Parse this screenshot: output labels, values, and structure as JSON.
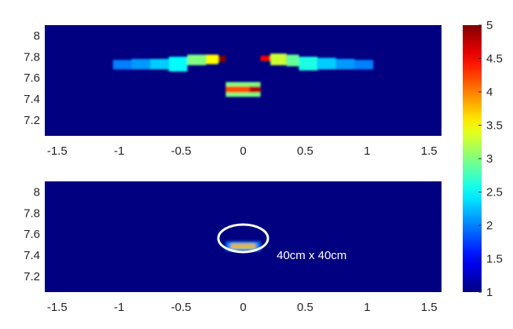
{
  "chart_data": [
    {
      "type": "heatmap",
      "title": "",
      "xlabel": "",
      "ylabel": "",
      "xlim": [
        -1.6,
        1.6
      ],
      "ylim": [
        7.05,
        8.1
      ],
      "x_ticks": [
        "-1.5",
        "-1",
        "-0.5",
        "0",
        "0.5",
        "1",
        "1.5"
      ],
      "x_tick_values": [
        -1.5,
        -1,
        -0.5,
        0,
        0.5,
        1,
        1.5
      ],
      "y_ticks": [
        "8",
        "7.8",
        "7.6",
        "7.4",
        "7.2"
      ],
      "y_tick_values": [
        8,
        7.8,
        7.6,
        7.4,
        7.2
      ],
      "background_value": 1,
      "cells": [
        {
          "x0": -1.05,
          "x1": -0.9,
          "y0": 7.68,
          "y1": 7.77,
          "v": 2.0
        },
        {
          "x0": -0.9,
          "x1": -0.75,
          "y0": 7.68,
          "y1": 7.78,
          "v": 2.1
        },
        {
          "x0": -0.75,
          "x1": -0.6,
          "y0": 7.68,
          "y1": 7.78,
          "v": 2.3
        },
        {
          "x0": -0.6,
          "x1": -0.45,
          "y0": 7.66,
          "y1": 7.8,
          "v": 2.5
        },
        {
          "x0": -0.45,
          "x1": -0.3,
          "y0": 7.72,
          "y1": 7.82,
          "v": 3.0
        },
        {
          "x0": -0.3,
          "x1": -0.2,
          "y0": 7.73,
          "y1": 7.82,
          "v": 3.5
        },
        {
          "x0": -0.2,
          "x1": -0.14,
          "y0": 7.75,
          "y1": 7.81,
          "v": 5.0
        },
        {
          "x0": 0.14,
          "x1": 0.22,
          "y0": 7.76,
          "y1": 7.81,
          "v": 4.5
        },
        {
          "x0": 0.22,
          "x1": 0.35,
          "y0": 7.72,
          "y1": 7.83,
          "v": 3.3
        },
        {
          "x0": 0.35,
          "x1": 0.45,
          "y0": 7.71,
          "y1": 7.82,
          "v": 2.9
        },
        {
          "x0": 0.45,
          "x1": 0.6,
          "y0": 7.67,
          "y1": 7.8,
          "v": 2.6
        },
        {
          "x0": 0.6,
          "x1": 0.75,
          "y0": 7.68,
          "y1": 7.79,
          "v": 2.3
        },
        {
          "x0": 0.75,
          "x1": 0.9,
          "y0": 7.68,
          "y1": 7.78,
          "v": 2.1
        },
        {
          "x0": 0.9,
          "x1": 1.05,
          "y0": 7.68,
          "y1": 7.77,
          "v": 2.0
        },
        {
          "x0": -0.14,
          "x1": 0.14,
          "y0": 7.42,
          "y1": 7.56,
          "v": 3.0
        },
        {
          "x0": -0.14,
          "x1": 0.05,
          "y0": 7.46,
          "y1": 7.52,
          "v": 4.2
        },
        {
          "x0": 0.05,
          "x1": 0.14,
          "y0": 7.46,
          "y1": 7.52,
          "v": 4.8
        }
      ]
    },
    {
      "type": "heatmap",
      "title": "",
      "xlabel": "",
      "ylabel": "",
      "xlim": [
        -1.6,
        1.6
      ],
      "ylim": [
        7.05,
        8.1
      ],
      "x_ticks": [
        "-1.5",
        "-1",
        "-0.5",
        "0",
        "0.5",
        "1",
        "1.5"
      ],
      "x_tick_values": [
        -1.5,
        -1,
        -0.5,
        0,
        0.5,
        1,
        1.5
      ],
      "y_ticks": [
        "8",
        "7.8",
        "7.6",
        "7.4",
        "7.2"
      ],
      "y_tick_values": [
        8,
        7.8,
        7.6,
        7.4,
        7.2
      ],
      "background_value": 1,
      "cells": [
        {
          "x0": -0.14,
          "x1": 0.14,
          "y0": 7.44,
          "y1": 7.53,
          "v": 2.0
        },
        {
          "x0": -0.1,
          "x1": 0.1,
          "y0": 7.46,
          "y1": 7.51,
          "v": 3.2
        },
        {
          "x0": -0.1,
          "x1": 0.1,
          "y0": 7.475,
          "y1": 7.5,
          "v": 4.0
        }
      ],
      "annotations": [
        {
          "shape": "ellipse",
          "cx": 0.0,
          "cy": 7.56,
          "rx": 0.2,
          "ry": 0.13,
          "color": "#ffffff"
        },
        {
          "text": "40cm x 40cm",
          "x": 0.27,
          "y": 7.4
        }
      ]
    }
  ],
  "colorbar": {
    "colormap": "jet",
    "min": 1,
    "max": 5,
    "ticks": [
      "5",
      "4.5",
      "4",
      "3.5",
      "3",
      "2.5",
      "2",
      "1.5",
      "1"
    ],
    "tick_values": [
      5,
      4.5,
      4,
      3.5,
      3,
      2.5,
      2,
      1.5,
      1
    ]
  }
}
